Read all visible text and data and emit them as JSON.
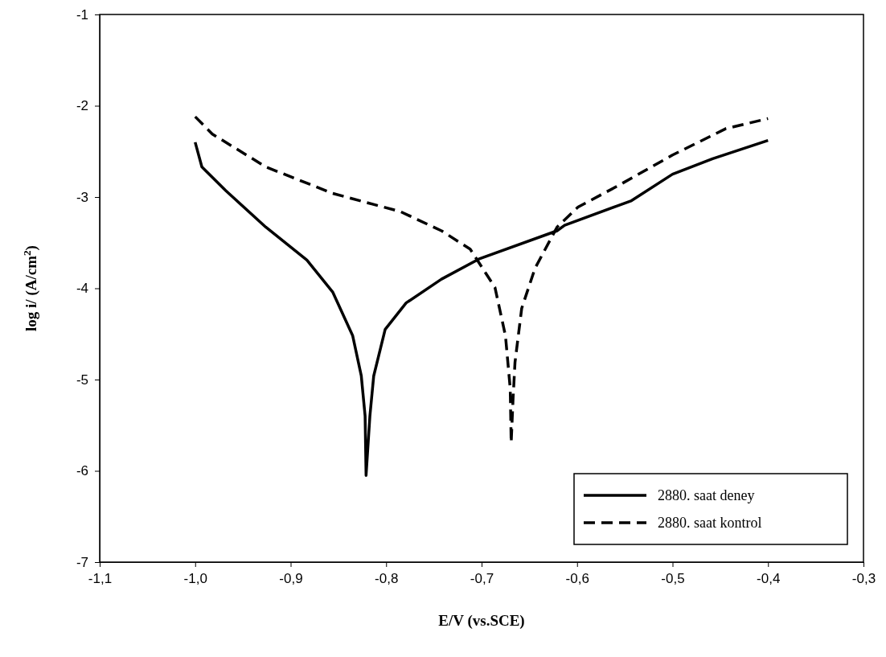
{
  "chart_data": {
    "type": "line",
    "xlabel": "E/V (vs.SCE)",
    "ylabel": "log i/ (A/cm$^{2}$)",
    "xlim": [
      -1.1,
      -0.3
    ],
    "ylim": [
      -7,
      -1
    ],
    "xticks": [
      {
        "value": -1.1,
        "label": "-1,1"
      },
      {
        "value": -1.0,
        "label": "-1,0"
      },
      {
        "value": -0.9,
        "label": "-0,9"
      },
      {
        "value": -0.8,
        "label": "-0,8"
      },
      {
        "value": -0.7,
        "label": "-0,7"
      },
      {
        "value": -0.6,
        "label": "-0,6"
      },
      {
        "value": -0.5,
        "label": "-0,5"
      },
      {
        "value": -0.4,
        "label": "-0,4"
      },
      {
        "value": -0.3,
        "label": "-0,3"
      }
    ],
    "yticks": [
      -7,
      -6,
      -5,
      -4,
      -3,
      -2,
      -1
    ],
    "grid": false,
    "legend": "bottom right",
    "marker": "none",
    "series": [
      {
        "name": "2880. saat deney",
        "color": "#000000",
        "line_style": "solid",
        "x": [
          -1.0,
          -0.993,
          -0.968,
          -0.926,
          -0.883,
          -0.856,
          -0.835,
          -0.826,
          -0.822,
          -0.821,
          -0.817,
          -0.813,
          -0.801,
          -0.779,
          -0.742,
          -0.703,
          -0.621,
          -0.613,
          -0.543,
          -0.5,
          -0.458,
          -0.4
        ],
        "values": [
          -2.4,
          -2.67,
          -2.93,
          -3.33,
          -3.69,
          -4.04,
          -4.52,
          -4.96,
          -5.4,
          -6.05,
          -5.4,
          -4.96,
          -4.45,
          -4.16,
          -3.9,
          -3.68,
          -3.37,
          -3.31,
          -3.04,
          -2.75,
          -2.58,
          -2.38
        ]
      },
      {
        "name": "2880. saat kontrol",
        "color": "#000000",
        "line_style": "dashed",
        "x": [
          -1.0,
          -0.982,
          -0.926,
          -0.856,
          -0.785,
          -0.742,
          -0.712,
          -0.686,
          -0.675,
          -0.67,
          -0.669,
          -0.667,
          -0.665,
          -0.658,
          -0.644,
          -0.621,
          -0.599,
          -0.556,
          -0.5,
          -0.444,
          -0.4
        ],
        "values": [
          -2.12,
          -2.31,
          -2.67,
          -2.96,
          -3.16,
          -3.37,
          -3.57,
          -3.99,
          -4.52,
          -5.1,
          -5.69,
          -5.2,
          -4.81,
          -4.22,
          -3.78,
          -3.33,
          -3.11,
          -2.87,
          -2.54,
          -2.25,
          -2.14
        ]
      }
    ]
  }
}
